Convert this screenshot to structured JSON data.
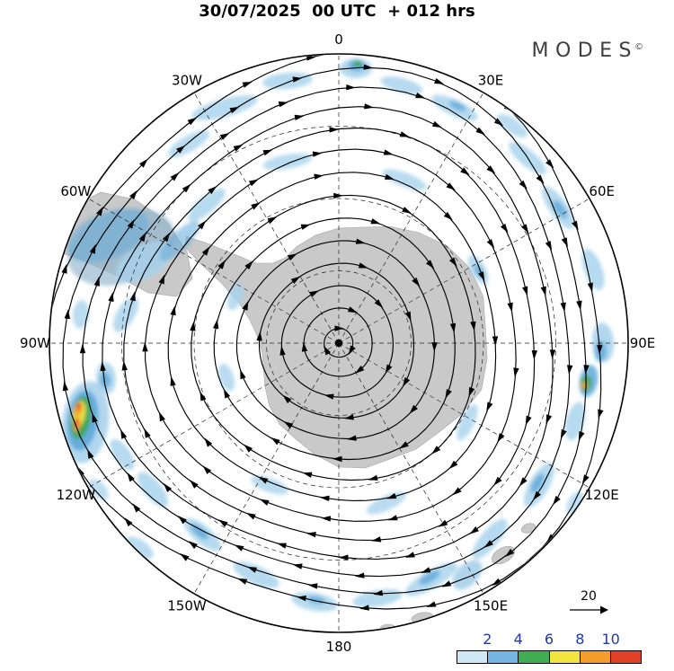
{
  "header": {
    "title": "30/07/2025  00 UTC  + 012 hrs",
    "logo": "MODES",
    "logo_sup": "©"
  },
  "map": {
    "longitude_labels": [
      "0",
      "30E",
      "60E",
      "90E",
      "120E",
      "150E",
      "180",
      "150W",
      "120W",
      "90W",
      "60W",
      "30W"
    ],
    "land_color": "#c9c9c9"
  },
  "reference_arrow": {
    "label": "20"
  },
  "legend": {
    "ticks": [
      "2",
      "4",
      "6",
      "8",
      "10"
    ],
    "colors": [
      "#cfe8f6",
      "#74b5e3",
      "#3fae52",
      "#f2e63e",
      "#f59d2c",
      "#e3402a"
    ],
    "tick_color": "#2038a8"
  }
}
